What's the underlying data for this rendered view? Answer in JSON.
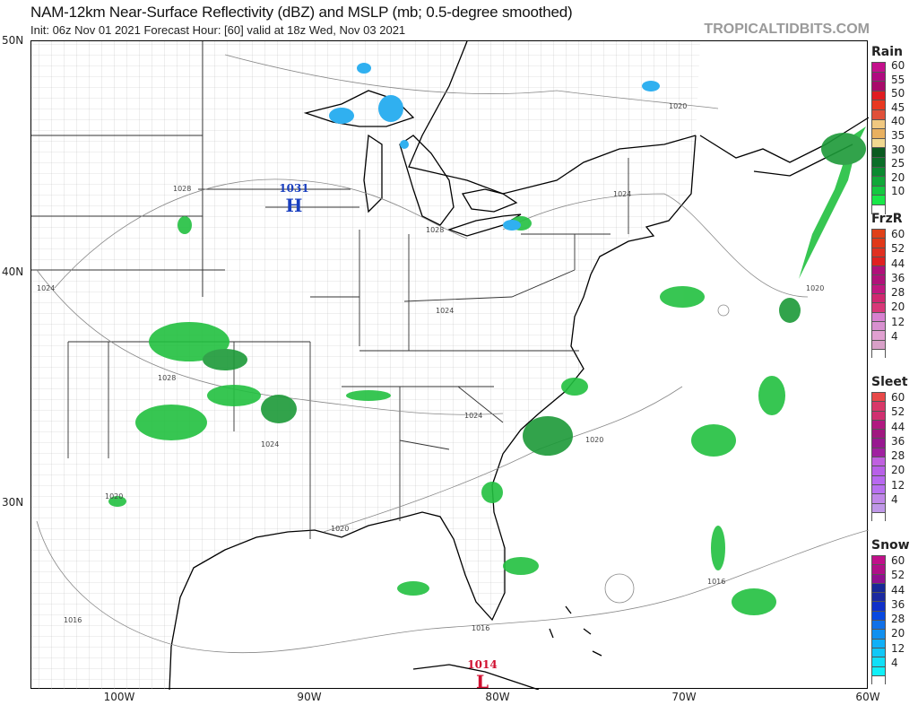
{
  "header": {
    "title": "NAM-12km Near-Surface Reflectivity (dBZ) and MSLP (mb; 0.5-degree smoothed)",
    "subtitle": "Init: 06z Nov 01 2021   Forecast Hour: [60]   valid at 18z Wed, Nov 03 2021",
    "brand": "TROPICALTIDBITS.COM"
  },
  "axes": {
    "lat_labels": [
      "50N",
      "40N",
      "30N"
    ],
    "lon_labels": [
      "100W",
      "90W",
      "80W",
      "70W",
      "60W"
    ]
  },
  "pressure_centers": [
    {
      "type": "H",
      "value": "1031",
      "color": "#1a3fbf"
    },
    {
      "type": "L",
      "value": "1014",
      "color": "#d01030"
    }
  ],
  "isobar_labels": [
    "1028",
    "1024",
    "1028",
    "1028",
    "1024",
    "1024",
    "1024",
    "1020",
    "1020",
    "1020",
    "1020",
    "1016",
    "1016",
    "1016",
    "1020"
  ],
  "legends": [
    {
      "title": "Rain",
      "labels": [
        "60",
        "55",
        "50",
        "45",
        "40",
        "35",
        "30",
        "25",
        "20",
        "10"
      ],
      "colors": [
        "#c4108c",
        "#b00a80",
        "#a80a6a",
        "#e01c20",
        "#e83820",
        "#e0503a",
        "#f0c880",
        "#e8b060",
        "#f0d890",
        "#0a5a20",
        "#0a6e28",
        "#0a8a30",
        "#10a838",
        "#14c840",
        "#18e848",
        "#ffffff"
      ]
    },
    {
      "title": "FrzR",
      "labels": [
        "60",
        "52",
        "44",
        "36",
        "28",
        "20",
        "12",
        "4"
      ],
      "colors": [
        "#e04018",
        "#e03818",
        "#e03020",
        "#e02020",
        "#b0107a",
        "#b0127a",
        "#c01880",
        "#d02870",
        "#d83878",
        "#d880d0",
        "#d890d0",
        "#e0a0d0",
        "#d8a0c8",
        "#ffffff"
      ]
    },
    {
      "title": "Sleet",
      "labels": [
        "60",
        "52",
        "44",
        "36",
        "28",
        "20",
        "12",
        "4"
      ],
      "colors": [
        "#e84848",
        "#d83868",
        "#d03070",
        "#b01880",
        "#a01880",
        "#981890",
        "#a020a0",
        "#c060e0",
        "#b860e8",
        "#b868f0",
        "#b870f0",
        "#c088e8",
        "#c098e8",
        "#ffffff"
      ]
    },
    {
      "title": "Snow",
      "labels": [
        "60",
        "52",
        "44",
        "36",
        "28",
        "20",
        "12",
        "4"
      ],
      "colors": [
        "#c0108a",
        "#b01088",
        "#901090",
        "#182898",
        "#1c2aa0",
        "#1030c8",
        "#0848e0",
        "#1070e8",
        "#1090f0",
        "#10b0f8",
        "#10c8f8",
        "#10e0f8",
        "#10f0f8",
        "#ffffff"
      ]
    }
  ],
  "colors": {
    "land": "#ffffff",
    "coast": "#000000",
    "county": "#bdbdbd",
    "isobar": "#888888",
    "rain": "#22c040",
    "snow": "#30b0f0"
  }
}
